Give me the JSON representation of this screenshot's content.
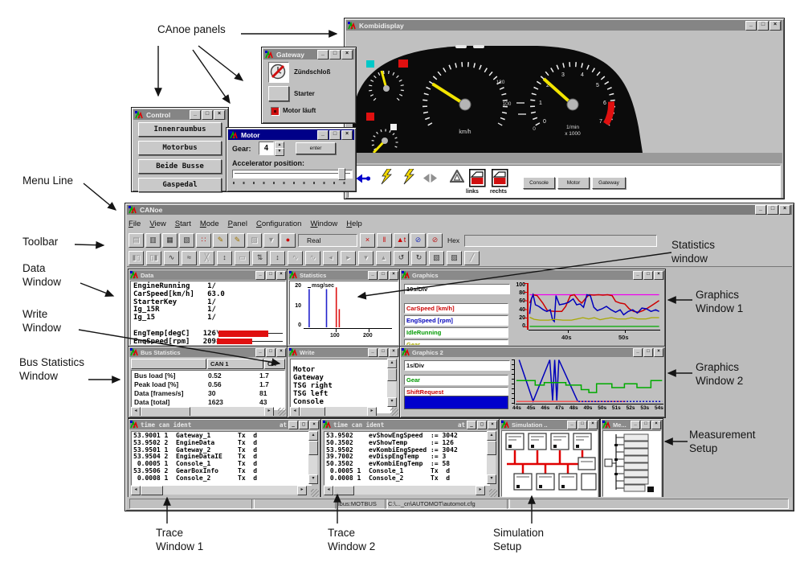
{
  "ann": {
    "canoe_panels": "C",
    "canoe_panels_full": "CAnoe panels",
    "menu_line": "Menu Line",
    "toolbar": "Toolbar",
    "data1": "Data",
    "data2": "Window",
    "write1": "Write",
    "write2": "Window",
    "bus1": "Bus Statistics",
    "bus2": "Window",
    "stats1": "Statistics",
    "stats2": "window",
    "g1a": "Graphics",
    "g1b": "Window 1",
    "g2a": "Graphics",
    "g2b": "Window 2",
    "meas1": "Measurement",
    "meas2": "Setup",
    "t1a": "Trace",
    "t1b": "Window 1",
    "t2a": "Trace",
    "t2b": "Window 2",
    "sim1": "Simulation",
    "sim2": "Setup"
  },
  "chrome": {
    "window_buttons": [
      {
        "name": "minimize-button",
        "glyph": "_"
      },
      {
        "name": "maximize-button",
        "glyph": "□"
      },
      {
        "name": "close-button",
        "glyph": "×"
      }
    ]
  },
  "kombi": {
    "title": "Kombidisplay",
    "speed_unit": "km/h",
    "tacho_unit1": "1/min",
    "tacho_unit2": "x 1000",
    "tacho_digits": [
      "0",
      "1",
      "2",
      "3",
      "4",
      "5",
      "6",
      "7"
    ],
    "mid_scale": [
      "120",
      "100",
      "0"
    ],
    "door_left_label": "links",
    "door_right_label": "rechts",
    "buttons": [
      {
        "label": "Console",
        "name": "console-button"
      },
      {
        "label": "Motor",
        "name": "motor-button"
      },
      {
        "label": "Gateway",
        "name": "gateway-button"
      }
    ]
  },
  "control": {
    "title": "Control",
    "buttons": [
      {
        "label": "Innenraumbus",
        "name": "innenraumbus-button"
      },
      {
        "label": "Motorbus",
        "name": "motorbus-button"
      },
      {
        "label": "Beide Busse",
        "name": "beide-busse-button"
      },
      {
        "label": "Gaspedal",
        "name": "gaspedal-button"
      }
    ]
  },
  "gateway": {
    "title": "Gateway",
    "ignition_label": "Zündschloß",
    "starter_label": "Starter",
    "checkbox_label": "Motor läuft"
  },
  "motor": {
    "title": "Motor",
    "gear_label": "Gear:",
    "gear_value": "4",
    "enter_label": "enter",
    "accel_label": "Accelerator position:"
  },
  "main": {
    "title": "CANoe",
    "menu": [
      "File",
      "View",
      "Start",
      "Mode",
      "Panel",
      "Configuration",
      "Window",
      "Help"
    ],
    "mode": "Real",
    "hex_label": "Hex",
    "status_bus": "ibus:MOTBUS",
    "status_config": "C:\\..._cn\\AUTOMOT\\automot.cfg",
    "toolbar_row1a": [
      {
        "glyph": "▤",
        "name": "print-button",
        "disabled": true
      },
      {
        "glyph": "▥",
        "name": "open-config-button"
      },
      {
        "glyph": "▦",
        "name": "save-config-button"
      },
      {
        "glyph": "▧",
        "name": "options-button"
      },
      {
        "glyph": "∷",
        "name": "network-nodes-button",
        "color": "#bb0000"
      },
      {
        "glyph": "✎",
        "name": "edit-capl-button",
        "color": "#a07400"
      },
      {
        "glyph": "✎",
        "name": "edit-panel-button",
        "color": "#a07400"
      },
      {
        "glyph": "▨",
        "name": "generator-block-button",
        "disabled": true
      },
      {
        "glyph": "▼",
        "name": "filter-button",
        "disabled": true
      },
      {
        "glyph": "●",
        "name": "start-measurement-button",
        "color": "#cc0000"
      }
    ],
    "toolbar_row1b": [
      {
        "glyph": "×",
        "name": "stop-measurement-button",
        "color": "#cc0000"
      },
      {
        "glyph": "‖",
        "name": "pause-button",
        "color": "#cc0000"
      },
      {
        "glyph": "▲t",
        "name": "trigger-button",
        "color": "#cc0000"
      },
      {
        "glyph": "⊘",
        "name": "symbolic-names-button",
        "color": "#2233bb"
      },
      {
        "glyph": "⊘",
        "name": "numeric-values-button",
        "color": "#bb2222"
      }
    ],
    "toolbar_row2": [
      {
        "glyph": "▮▯",
        "name": "stat-bar-button",
        "disabled": true
      },
      {
        "glyph": "▯▮",
        "name": "stat-bar2-button",
        "disabled": true
      },
      {
        "glyph": "∿",
        "name": "curve-button"
      },
      {
        "glyph": "≈",
        "name": "curves-button"
      },
      {
        "glyph": "╳",
        "name": "zoom-x-button",
        "disabled": true
      },
      {
        "glyph": "↕",
        "name": "zoom-y-button"
      },
      {
        "glyph": "▭",
        "name": "zoom-box-button",
        "disabled": true
      },
      {
        "glyph": "⇅",
        "name": "expand-axis-button"
      },
      {
        "glyph": "↕",
        "name": "fit-axis-button"
      },
      {
        "glyph": "∿",
        "name": "prev-signal-button",
        "disabled": true
      },
      {
        "glyph": "∿",
        "name": "next-signal-button",
        "disabled": true
      },
      {
        "glyph": "◂",
        "name": "scroll-left-button",
        "disabled": true
      },
      {
        "glyph": "▸",
        "name": "scroll-right-button",
        "disabled": true
      },
      {
        "glyph": "▾",
        "name": "scroll-down-button",
        "disabled": true
      },
      {
        "glyph": "▴",
        "name": "scroll-up-button",
        "disabled": true
      },
      {
        "glyph": "↺",
        "name": "undo-zoom-button"
      },
      {
        "glyph": "↻",
        "name": "redo-zoom-button"
      },
      {
        "glyph": "▧",
        "name": "measure-marker-button"
      },
      {
        "glyph": "▨",
        "name": "cursor-button"
      },
      {
        "glyph": "╱",
        "name": "slope-button",
        "disabled": true
      }
    ]
  },
  "dataw": {
    "title": "Data",
    "rows": [
      "EngineRunning    1/",
      "CarSpeed[km/h]   63.0",
      "StarterKey       1/",
      "Ig_15R           1/",
      "Ig_15            1/",
      " ",
      "EngTemp[degC]   126\\",
      "EngSpeed[rpm]   2098"
    ]
  },
  "stats": {
    "title": "Statistics",
    "axis_label": "msg/sec",
    "yticks": [
      "20",
      "10",
      "0"
    ],
    "xticks": [
      "100",
      "200"
    ],
    "chart_data": {
      "type": "bar",
      "ylabel": "msg/sec",
      "xlim": [
        0,
        270
      ],
      "ylim": [
        0,
        23
      ],
      "xtick_values": [
        100,
        200
      ],
      "ytick_values": [
        20,
        10,
        0
      ],
      "series": [
        {
          "name": "can1-msg-rate",
          "color": "#2222cc",
          "width": 1.6,
          "bars": [
            [
              17,
              21
            ],
            [
              70,
              21
            ]
          ]
        },
        {
          "name": "can2-msg-rate",
          "color": "#dd1111",
          "width": 1.6,
          "bars": [
            [
              100,
              22
            ],
            [
              109,
              10
            ]
          ]
        }
      ]
    }
  },
  "g1": {
    "title": "Graphics",
    "div_label": "10s/Div",
    "signals": [
      {
        "label": "CarSpeed [km/h]",
        "color": "#cc0000",
        "name": "signal-carspeed"
      },
      {
        "label": "EngSpeed [rpm]",
        "color": "#0000bb",
        "name": "signal-engspeed"
      },
      {
        "label": "IdleRunning",
        "color": "#009900",
        "name": "signal-idlerunning"
      },
      {
        "label": "Gear",
        "color": "#a8a800",
        "name": "signal-gear"
      }
    ],
    "yticks": [
      "100",
      "80",
      "60",
      "40",
      "20",
      "0"
    ],
    "xticks": [
      "40s",
      "50s"
    ],
    "chart_data": {
      "type": "line",
      "xlim": [
        33,
        56
      ],
      "ylim": [
        0,
        108
      ],
      "xtick_values": [
        40,
        50
      ],
      "ytick_values": [
        100,
        80,
        60,
        40,
        20,
        0
      ],
      "series": [
        {
          "name": "limit-line",
          "color": "#ee00ee",
          "width": 1.3,
          "points": [
            [
              33.2,
              80
            ],
            [
              55.8,
              80
            ]
          ]
        },
        {
          "name": "CarSpeed [km/h]",
          "color": "#cc0000",
          "width": 1.5,
          "points": [
            [
              33.2,
              60
            ],
            [
              33.8,
              80
            ],
            [
              34.5,
              78
            ],
            [
              35.5,
              60
            ],
            [
              36.3,
              42
            ],
            [
              37.5,
              40
            ],
            [
              38.8,
              40
            ],
            [
              39.5,
              52
            ],
            [
              40.3,
              78
            ],
            [
              41,
              80
            ],
            [
              41.8,
              66
            ],
            [
              42.3,
              60
            ],
            [
              43,
              72
            ],
            [
              43.6,
              80
            ],
            [
              44.4,
              79
            ],
            [
              45.2,
              80
            ],
            [
              46,
              79
            ],
            [
              46.8,
              80
            ],
            [
              47.6,
              78
            ],
            [
              48.2,
              64
            ],
            [
              49,
              60
            ],
            [
              49.8,
              58
            ],
            [
              50.6,
              46
            ],
            [
              51.4,
              40
            ],
            [
              52.2,
              38
            ],
            [
              53,
              42
            ],
            [
              53.8,
              48
            ],
            [
              54.6,
              55
            ],
            [
              55.8,
              66
            ]
          ]
        },
        {
          "name": "EngSpeed [rpm]",
          "color": "#0000bb",
          "width": 1.5,
          "points": [
            [
              33.2,
              34
            ],
            [
              33.5,
              70
            ],
            [
              33.8,
              80
            ],
            [
              34.2,
              56
            ],
            [
              34.8,
              52
            ],
            [
              35.6,
              44
            ],
            [
              36.2,
              40
            ],
            [
              36.8,
              44
            ],
            [
              37.2,
              20
            ],
            [
              37.5,
              16
            ],
            [
              37.8,
              78
            ],
            [
              38.4,
              56
            ],
            [
              39.2,
              58
            ],
            [
              40,
              62
            ],
            [
              40.8,
              70
            ],
            [
              41.4,
              56
            ],
            [
              42,
              58
            ],
            [
              42.6,
              50
            ],
            [
              43.2,
              80
            ],
            [
              43.8,
              78
            ],
            [
              44.4,
              50
            ],
            [
              45,
              42
            ],
            [
              45.8,
              46
            ],
            [
              46.6,
              52
            ],
            [
              47.4,
              44
            ],
            [
              48.2,
              38
            ],
            [
              49,
              44
            ],
            [
              49.6,
              32
            ],
            [
              50.4,
              40
            ],
            [
              51.2,
              44
            ],
            [
              52,
              36
            ],
            [
              52.8,
              48
            ],
            [
              53.6,
              46
            ],
            [
              54.4,
              40
            ],
            [
              55.2,
              44
            ],
            [
              55.8,
              40
            ]
          ]
        },
        {
          "name": "Gear",
          "color": "#a8a800",
          "width": 1.3,
          "points": [
            [
              33.2,
              26
            ],
            [
              34,
              21
            ],
            [
              35,
              19
            ],
            [
              36.5,
              19
            ],
            [
              37.5,
              21
            ],
            [
              39,
              19
            ],
            [
              40.5,
              19
            ],
            [
              41.5,
              22
            ],
            [
              42.5,
              25
            ],
            [
              43.5,
              22
            ],
            [
              44.5,
              25
            ],
            [
              45.5,
              20
            ],
            [
              46.5,
              23
            ],
            [
              47.5,
              25
            ],
            [
              48.5,
              22
            ],
            [
              50,
              22
            ],
            [
              51,
              25
            ],
            [
              52,
              22
            ],
            [
              53.5,
              22
            ],
            [
              54.5,
              25
            ],
            [
              55.8,
              25
            ]
          ]
        },
        {
          "name": "IdleRunning",
          "color": "#00aa00",
          "width": 1.3,
          "points": [
            [
              33.2,
              4
            ],
            [
              55.8,
              4
            ]
          ]
        }
      ]
    }
  },
  "busw": {
    "title": "Bus Statistics",
    "columns": [
      "",
      "CAN 1",
      "CA"
    ],
    "rows": [
      [
        "Bus load [%]",
        "0.52",
        "1.7"
      ],
      [
        "Peak load [%]",
        "0.56",
        "1.7"
      ],
      [
        "Data [frames/s]",
        "30",
        "81"
      ],
      [
        "Data [total]",
        "1623",
        "43"
      ]
    ]
  },
  "writew": {
    "title": "Write",
    "lines": [
      "Motor",
      "Gateway",
      "TSG right",
      "TSG left",
      "Console"
    ]
  },
  "g2": {
    "title": "Graphics 2",
    "div_label": "1s/Div",
    "signals": [
      {
        "label": "Gear",
        "color": "#009900",
        "name": "signal-gear"
      },
      {
        "label": "ShiftRequest",
        "color": "#cc0000",
        "name": "signal-shiftrequest"
      }
    ],
    "xticks": [
      "44s",
      "45s",
      "46s",
      "47s",
      "48s",
      "49s",
      "50s",
      "51s",
      "52s",
      "53s",
      "54s"
    ],
    "chart_data": {
      "type": "line",
      "xlim": [
        43.9,
        54.5
      ],
      "ylim": [
        0,
        10.5
      ],
      "series": [
        {
          "name": "engspeed-scaled",
          "color": "#0000bb",
          "width": 1.5,
          "points": [
            [
              44.15,
              10.4
            ],
            [
              45.15,
              0.4
            ],
            [
              46.35,
              10.4
            ],
            [
              46.55,
              0.6
            ],
            [
              46.7,
              10.4
            ],
            [
              46.85,
              0.6
            ],
            [
              47.0,
              10.4
            ],
            [
              48.35,
              0.4
            ]
          ]
        },
        {
          "name": "Gear",
          "color": "#00aa00",
          "width": 1.5,
          "points": [
            [
              43.95,
              5.4
            ],
            [
              45.3,
              5.4
            ],
            [
              45.3,
              4.3
            ],
            [
              45.95,
              4.3
            ],
            [
              45.95,
              4.9
            ],
            [
              47.5,
              4.9
            ],
            [
              47.5,
              4.3
            ],
            [
              48.6,
              4.3
            ],
            [
              48.6,
              3.2
            ],
            [
              49.15,
              3.2
            ],
            [
              49.15,
              2.5
            ],
            [
              49.7,
              2.5
            ],
            [
              49.7,
              4.6
            ],
            [
              50.8,
              4.6
            ],
            [
              50.8,
              3.7
            ],
            [
              51.7,
              3.7
            ],
            [
              51.7,
              4.6
            ],
            [
              52.6,
              4.6
            ],
            [
              52.6,
              3.7
            ],
            [
              53.6,
              3.7
            ],
            [
              53.6,
              5.4
            ],
            [
              54.4,
              5.4
            ]
          ]
        },
        {
          "name": "ShiftRequest",
          "color": "#ee5555",
          "width": 1.5,
          "points": [
            [
              43.95,
              0.35
            ],
            [
              51.8,
              0.35
            ]
          ]
        },
        {
          "name": "engspeed-idle",
          "color": "#0000bb",
          "width": 1.5,
          "dash": "2,2",
          "points": [
            [
              48.4,
              0.35
            ],
            [
              54.4,
              0.35
            ]
          ]
        }
      ]
    }
  },
  "t1": {
    "header_left": "time  can ident",
    "header_right": "at",
    "rows": [
      "53.9001 1  Gateway_1       Tx  d",
      "53.9502 2  EngineData      Tx  d",
      "53.9501 1  Gateway_2       Tx  d",
      "53.9504 2  EngineDataIE    Tx  d",
      " 0.0005 1  Console_1       Tx  d",
      "53.9506 2  GearBoxInfo     Tx  d",
      " 0.0008 1  Console_2       Tx  d"
    ]
  },
  "t2": {
    "header_left": "time  can ident",
    "header_right": "at",
    "rows": [
      "53.9502    evShowEngSpeed  := 3042",
      "50.3502    evShowTemp      := 126",
      "53.9502    evKombiEngSpeed := 3042",
      "39.7002    evDispEngTemp   := 3",
      "50.3502    evKombiEngTemp  := 58",
      " 0.0005 1  Console_1       Tx  d",
      " 0.0008 1  Console_2       Tx  d"
    ]
  },
  "simw": {
    "title": "Simulation .."
  },
  "mew": {
    "title": "Me..."
  }
}
